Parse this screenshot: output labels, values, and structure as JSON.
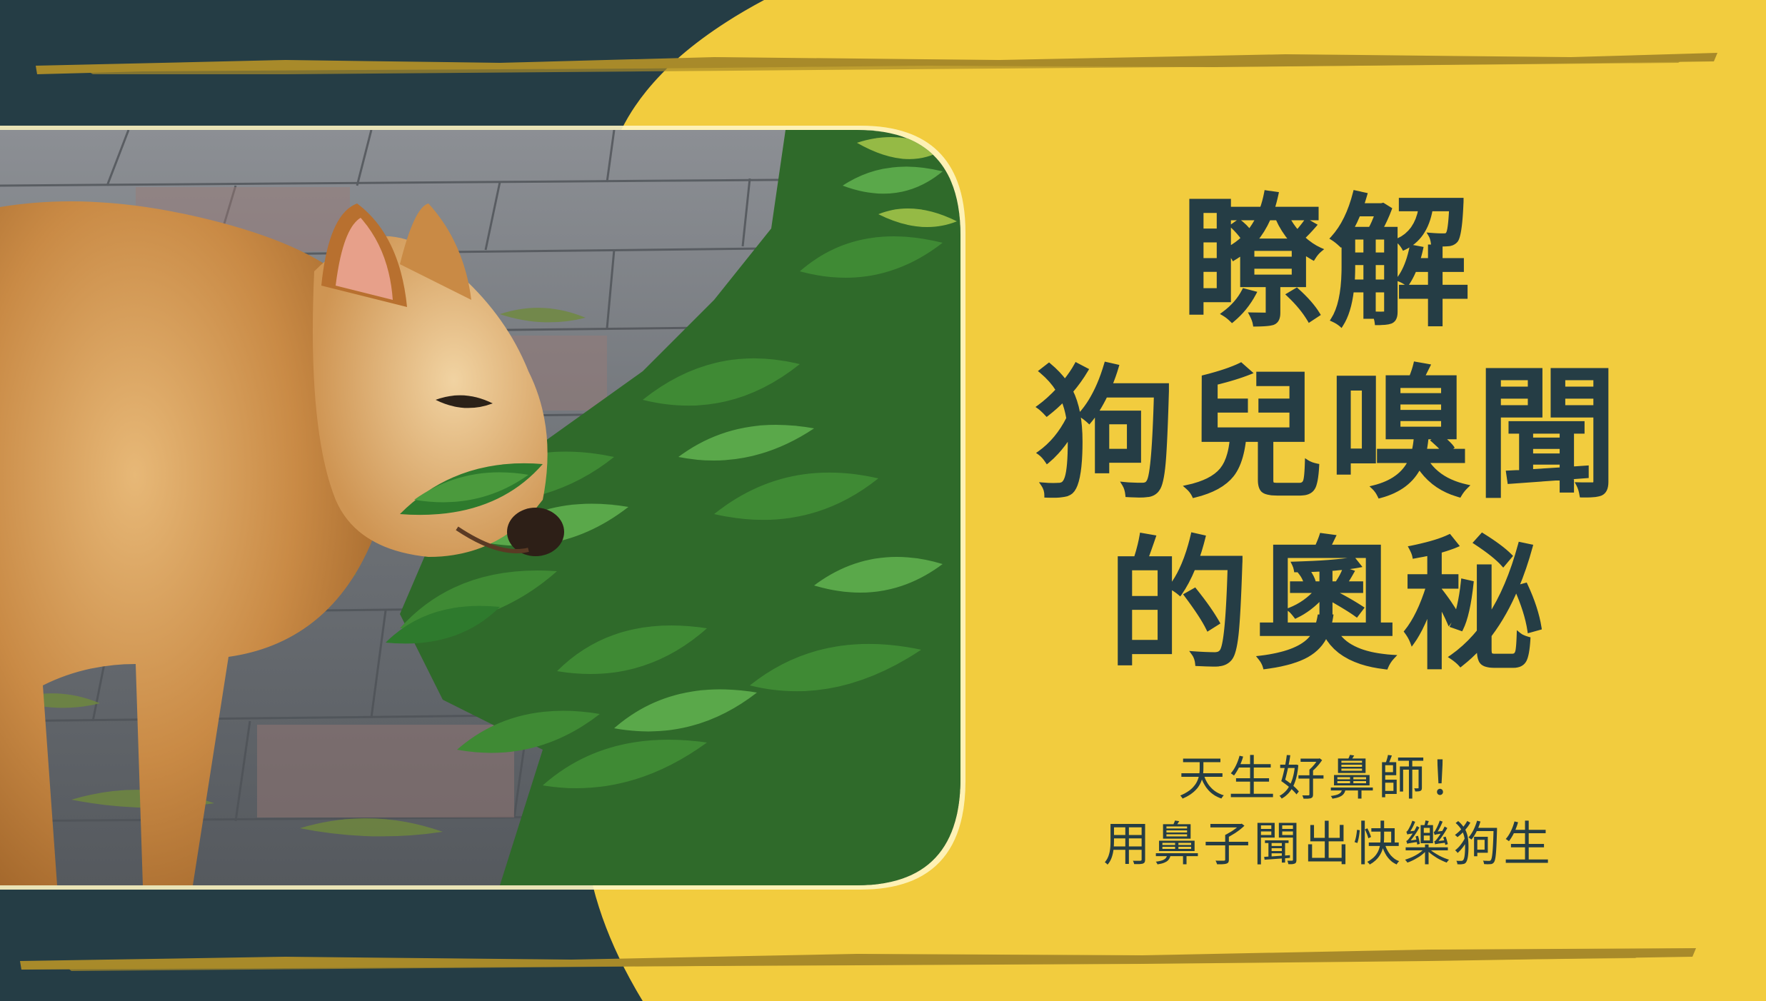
{
  "title_lines": [
    "瞭解",
    "狗兒嗅聞",
    "的奧秘"
  ],
  "subtitle_lines": [
    "天生好鼻師！",
    "用鼻子聞出快樂狗生"
  ],
  "photo": {
    "subject": "dog-sniffing-plant-photo"
  },
  "colors": {
    "yellow": "#f2cc3e",
    "navy": "#253d45",
    "brush": "#a88a2a"
  }
}
